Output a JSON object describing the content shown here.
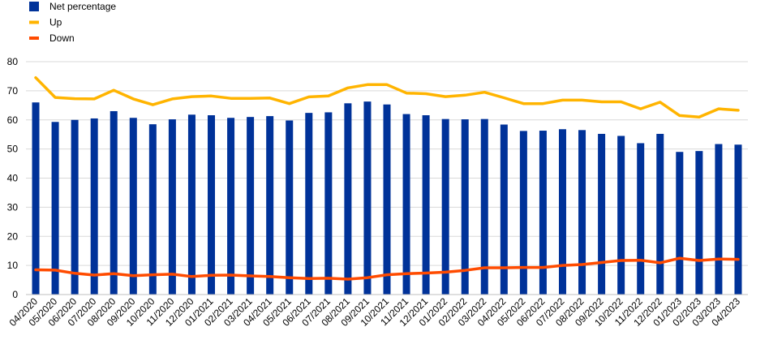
{
  "chart_data": {
    "type": "bar",
    "title": "",
    "xlabel": "",
    "ylabel": "",
    "ylim": [
      0,
      80
    ],
    "yticks": [
      0,
      10,
      20,
      30,
      40,
      50,
      60,
      70,
      80
    ],
    "grid": true,
    "legend_position": "top-left",
    "categories": [
      "04/2020",
      "05/2020",
      "06/2020",
      "07/2020",
      "08/2020",
      "09/2020",
      "10/2020",
      "11/2020",
      "12/2020",
      "01/2021",
      "02/2021",
      "03/2021",
      "04/2021",
      "05/2021",
      "06/2021",
      "07/2021",
      "08/2021",
      "09/2021",
      "10/2021",
      "11/2021",
      "12/2021",
      "01/2022",
      "02/2022",
      "03/2022",
      "04/2022",
      "05/2022",
      "06/2022",
      "07/2022",
      "08/2022",
      "09/2022",
      "10/2022",
      "11/2022",
      "12/2022",
      "01/2023",
      "02/2023",
      "03/2023",
      "04/2023"
    ],
    "series": [
      {
        "name": "Net percentage",
        "type": "bar",
        "color": "#003299",
        "values": [
          66,
          59.3,
          60,
          60.5,
          63,
          60.7,
          58.5,
          60.2,
          61.8,
          61.6,
          60.7,
          61,
          61.3,
          59.8,
          62.4,
          62.6,
          65.7,
          66.3,
          65.3,
          62,
          61.6,
          60.3,
          60.2,
          60.3,
          58.4,
          56.2,
          56.3,
          56.8,
          56.5,
          55.2,
          54.5,
          52,
          55.2,
          49,
          49.3,
          51.7,
          51.5
        ]
      },
      {
        "name": "Up",
        "type": "line",
        "color": "#FFB400",
        "values": [
          74.5,
          67.7,
          67.3,
          67.2,
          70.2,
          67.2,
          65.2,
          67.2,
          68,
          68.2,
          67.4,
          67.4,
          67.5,
          65.6,
          67.9,
          68.2,
          71,
          72.1,
          72.1,
          69.2,
          69,
          68,
          68.5,
          69.5,
          67.6,
          65.6,
          65.6,
          66.8,
          66.8,
          66.2,
          66.2,
          63.8,
          66.1,
          61.5,
          61,
          63.8,
          63.3
        ]
      },
      {
        "name": "Down",
        "type": "line",
        "color": "#FF4B00",
        "values": [
          8.5,
          8.4,
          7.3,
          6.7,
          7.2,
          6.5,
          6.8,
          7,
          6.2,
          6.6,
          6.7,
          6.4,
          6.2,
          5.8,
          5.5,
          5.6,
          5.3,
          5.8,
          6.8,
          7.2,
          7.4,
          7.7,
          8.3,
          9.2,
          9.2,
          9.3,
          9.3,
          10,
          10.3,
          11,
          11.7,
          11.8,
          10.9,
          12.5,
          11.7,
          12.2,
          12.1
        ]
      }
    ]
  }
}
